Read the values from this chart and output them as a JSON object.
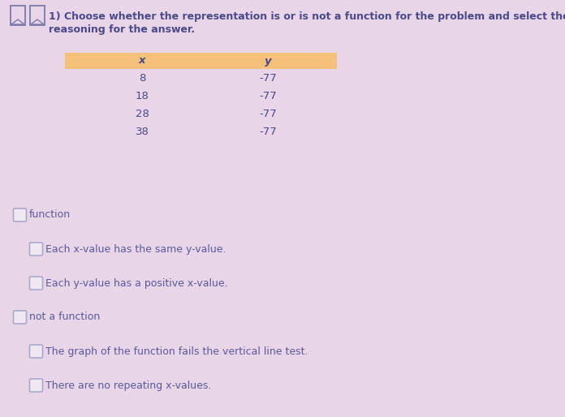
{
  "background_color": "#e8d5e8",
  "title_line1": "1) Choose whether the representation is or is not a function for the problem and select the",
  "title_line2": "reasoning for the answer.",
  "title_color": "#4a4a8a",
  "title_fontsize": 9.0,
  "table_header": [
    "x",
    "y"
  ],
  "table_data": [
    [
      "8",
      "-77"
    ],
    [
      "18",
      "-77"
    ],
    [
      "28",
      "-77"
    ],
    [
      "38",
      "-77"
    ]
  ],
  "table_header_bg": "#f5c07a",
  "table_text_color": "#4a4a8a",
  "table_fontsize": 9.5,
  "options": [
    {
      "level": 0,
      "text": "function"
    },
    {
      "level": 1,
      "text": "Each x-value has the same y-value."
    },
    {
      "level": 1,
      "text": "Each y-value has a positive x-value."
    },
    {
      "level": 0,
      "text": "not a function"
    },
    {
      "level": 1,
      "text": "The graph of the function fails the vertical line test."
    },
    {
      "level": 1,
      "text": "There are no repeating x-values."
    }
  ],
  "option_text_color": "#5a5a9a",
  "option_fontsize": 9.0,
  "checkbox_color": "#f0e8f0",
  "checkbox_border_color": "#aaaacc",
  "icon_color": "#7a7aaa"
}
